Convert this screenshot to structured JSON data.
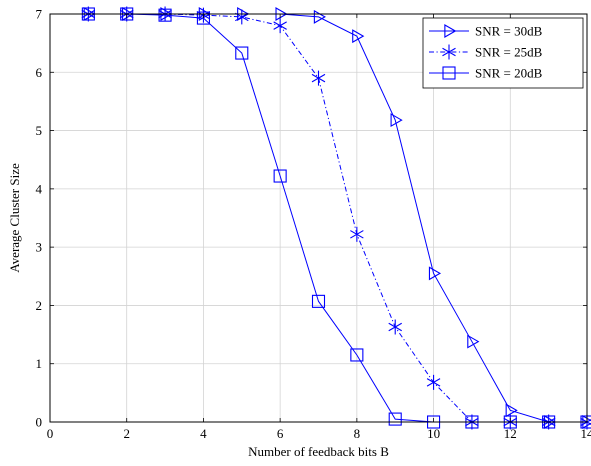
{
  "chart_data": {
    "type": "line",
    "title": "",
    "xlabel": "Number of feedback bits B",
    "ylabel": "Average Cluster Size",
    "xlim": [
      0,
      14
    ],
    "ylim": [
      0,
      7
    ],
    "xticks": [
      0,
      2,
      4,
      6,
      8,
      10,
      12,
      14
    ],
    "yticks": [
      0,
      1,
      2,
      3,
      4,
      5,
      6,
      7
    ],
    "grid": true,
    "legend_position": "top-right",
    "line_color": "#0000ff",
    "series": [
      {
        "name": "SNR = 30dB",
        "marker": "triangle-right",
        "linestyle": "solid",
        "x": [
          1,
          2,
          3,
          4,
          5,
          6,
          7,
          8,
          9,
          10,
          11,
          12,
          13,
          14
        ],
        "y": [
          7,
          7,
          7,
          7,
          7,
          7,
          6.95,
          6.62,
          5.18,
          2.55,
          1.38,
          0.2,
          0,
          0
        ]
      },
      {
        "name": "SNR = 25dB",
        "marker": "star",
        "linestyle": "dashdot",
        "x": [
          1,
          2,
          3,
          4,
          5,
          6,
          7,
          8,
          9,
          10,
          11,
          12,
          13,
          14
        ],
        "y": [
          7,
          7,
          7,
          6.98,
          6.95,
          6.8,
          5.9,
          3.22,
          1.63,
          0.68,
          0,
          0,
          0,
          0
        ]
      },
      {
        "name": "SNR = 20dB",
        "marker": "square",
        "linestyle": "solid",
        "x": [
          1,
          2,
          3,
          4,
          5,
          6,
          7,
          8,
          9,
          10,
          11,
          12,
          13,
          14
        ],
        "y": [
          7,
          7,
          6.98,
          6.93,
          6.33,
          4.22,
          2.07,
          1.15,
          0.05,
          0,
          0,
          0,
          0,
          0
        ]
      }
    ]
  }
}
